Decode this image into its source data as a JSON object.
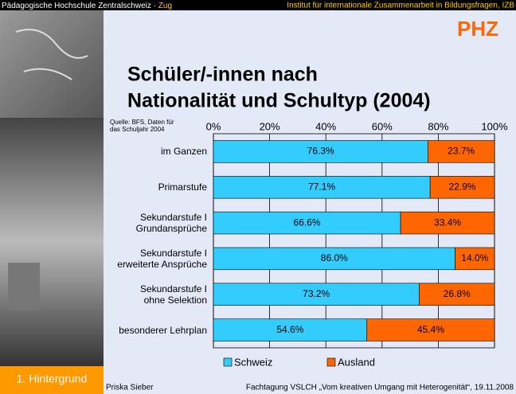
{
  "header": {
    "institution": "Pädagogische Hochschule Zentralschweiz · ",
    "location": "Zug",
    "institute": "Institut für internationale Zusammenarbeit in Bildungsfragen, IZB"
  },
  "logo": "PHZ",
  "chart_data": {
    "type": "stacked_barh",
    "title": "Schüler/-innen nach",
    "title_line2": "Nationalität und Schultyp (2004)",
    "source": "Quelle: BFS, Daten für\ndas Schuljahr 2004",
    "categories": [
      "im Ganzen",
      "Primarstufe",
      "Sekundarstufe I\nGrundansprüche",
      "Sekundarstufe I\nerweiterte Ansprüche",
      "Sekundarstufe I\nohne Selektion",
      "besonderer Lehrplan"
    ],
    "series": [
      {
        "name": "Schweiz",
        "color": "#33ccff",
        "values": [
          76.3,
          77.1,
          66.6,
          86.0,
          73.2,
          54.6
        ],
        "value_labels": [
          "76.3%",
          "77.1%",
          "66.6%",
          "86.0%",
          "73.2%",
          "54.6%"
        ]
      },
      {
        "name": "Ausland",
        "color": "#ff6600",
        "values": [
          23.7,
          22.9,
          33.4,
          14.0,
          26.8,
          45.4
        ],
        "value_labels": [
          "23.7%",
          "22.9%",
          "33.4%",
          "14.0%",
          "26.8%",
          "45.4%"
        ]
      }
    ],
    "xlim": [
      0,
      100
    ],
    "xticks": [
      {
        "value": 0,
        "label": "0%"
      },
      {
        "value": 20,
        "label": "20%"
      },
      {
        "value": 40,
        "label": "40%"
      },
      {
        "value": 60,
        "label": "60%"
      },
      {
        "value": 80,
        "label": "80%"
      },
      {
        "value": 100,
        "label": "100%"
      }
    ],
    "grid": true,
    "legend": "bottom"
  },
  "footer": {
    "section": "1. Hintergrund",
    "author": "Priska Sieber",
    "event": "Fachtagung VSLCH „Vom kreativen Umgang mit Heterogenität“, 19.11.2008"
  }
}
